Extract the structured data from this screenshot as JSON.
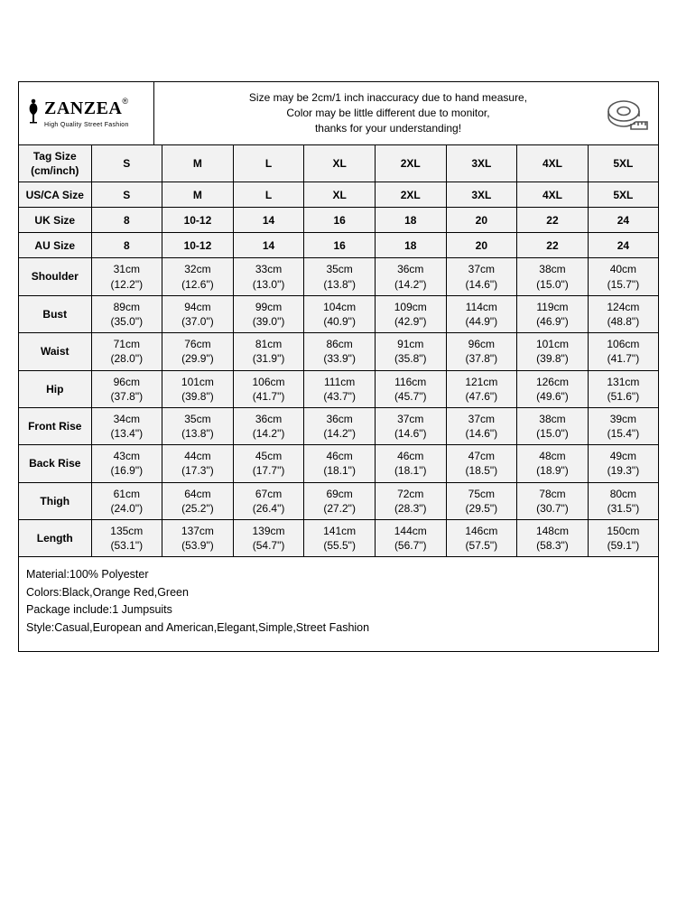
{
  "brand": {
    "name": "ZANZEA",
    "tagline": "High Quality Street Fashion"
  },
  "notice": {
    "line1": "Size may be 2cm/1 inch inaccuracy due to hand measure,",
    "line2": "Color may be little different due to monitor,",
    "line3": "thanks for your understanding!"
  },
  "table": {
    "header_label_l1": "Tag Size",
    "header_label_l2": "(cm/inch)",
    "sizes": [
      "S",
      "M",
      "L",
      "XL",
      "2XL",
      "3XL",
      "4XL",
      "5XL"
    ],
    "simple_rows": [
      {
        "label": "US/CA Size",
        "values": [
          "S",
          "M",
          "L",
          "XL",
          "2XL",
          "3XL",
          "4XL",
          "5XL"
        ]
      },
      {
        "label": "UK Size",
        "values": [
          "8",
          "10-12",
          "14",
          "16",
          "18",
          "20",
          "22",
          "24"
        ]
      },
      {
        "label": "AU Size",
        "values": [
          "8",
          "10-12",
          "14",
          "16",
          "18",
          "20",
          "22",
          "24"
        ]
      }
    ],
    "measure_rows": [
      {
        "label": "Shoulder",
        "cm": [
          "31",
          "32",
          "33",
          "35",
          "36",
          "37",
          "38",
          "40"
        ],
        "in": [
          "12.2",
          "12.6",
          "13.0",
          "13.8",
          "14.2",
          "14.6",
          "15.0",
          "15.7"
        ]
      },
      {
        "label": "Bust",
        "cm": [
          "89",
          "94",
          "99",
          "104",
          "109",
          "114",
          "119",
          "124"
        ],
        "in": [
          "35.0",
          "37.0",
          "39.0",
          "40.9",
          "42.9",
          "44.9",
          "46.9",
          "48.8"
        ]
      },
      {
        "label": "Waist",
        "cm": [
          "71",
          "76",
          "81",
          "86",
          "91",
          "96",
          "101",
          "106"
        ],
        "in": [
          "28.0",
          "29.9",
          "31.9",
          "33.9",
          "35.8",
          "37.8",
          "39.8",
          "41.7"
        ]
      },
      {
        "label": "Hip",
        "cm": [
          "96",
          "101",
          "106",
          "111",
          "116",
          "121",
          "126",
          "131"
        ],
        "in": [
          "37.8",
          "39.8",
          "41.7",
          "43.7",
          "45.7",
          "47.6",
          "49.6",
          "51.6"
        ]
      },
      {
        "label": "Front Rise",
        "cm": [
          "34",
          "35",
          "36",
          "36",
          "37",
          "37",
          "38",
          "39"
        ],
        "in": [
          "13.4",
          "13.8",
          "14.2",
          "14.2",
          "14.6",
          "14.6",
          "15.0",
          "15.4"
        ]
      },
      {
        "label": "Back Rise",
        "cm": [
          "43",
          "44",
          "45",
          "46",
          "46",
          "47",
          "48",
          "49"
        ],
        "in": [
          "16.9",
          "17.3",
          "17.7",
          "18.1",
          "18.1",
          "18.5",
          "18.9",
          "19.3"
        ]
      },
      {
        "label": "Thigh",
        "cm": [
          "61",
          "64",
          "67",
          "69",
          "72",
          "75",
          "78",
          "80"
        ],
        "in": [
          "24.0",
          "25.2",
          "26.4",
          "27.2",
          "28.3",
          "29.5",
          "30.7",
          "31.5"
        ]
      },
      {
        "label": "Length",
        "cm": [
          "135",
          "137",
          "139",
          "141",
          "144",
          "146",
          "148",
          "150"
        ],
        "in": [
          "53.1",
          "53.9",
          "54.7",
          "55.5",
          "56.7",
          "57.5",
          "58.3",
          "59.1"
        ]
      }
    ]
  },
  "info": {
    "material": "Material:100% Polyester",
    "colors": "Colors:Black,Orange Red,Green",
    "package": "Package include:1 Jumpsuits",
    "style": "Style:Casual,European and American,Elegant,Simple,Street Fashion"
  },
  "style": {
    "border_color": "#000000",
    "bg_cell": "#f2f2f2",
    "bg_page": "#ffffff",
    "font_size_table": 12,
    "font_size_note": 12,
    "font_size_info": 12.5
  }
}
